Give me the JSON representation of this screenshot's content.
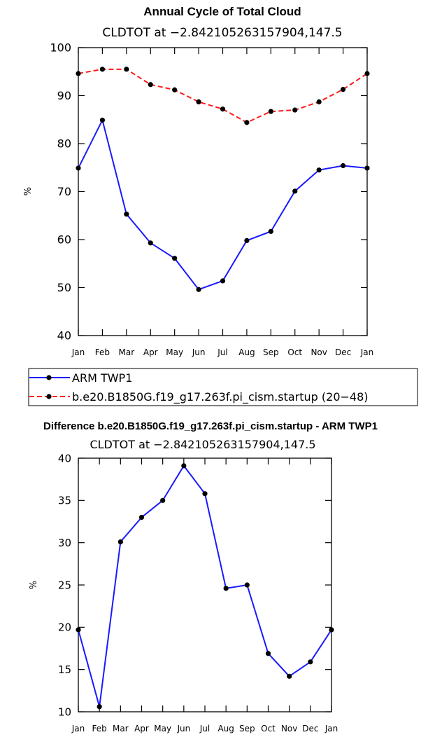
{
  "chart_data": [
    {
      "type": "line",
      "title": "Annual Cycle of Total Cloud",
      "subtitle": "CLDTOT at −2.842105263157904,147.5",
      "xlabel": "",
      "ylabel": "%",
      "categories": [
        "Jan",
        "Feb",
        "Mar",
        "Apr",
        "May",
        "Jun",
        "Jul",
        "Aug",
        "Sep",
        "Oct",
        "Nov",
        "Dec",
        "Jan"
      ],
      "ylim": [
        40,
        100
      ],
      "yticks": [
        40,
        50,
        60,
        70,
        80,
        90,
        100
      ],
      "series": [
        {
          "name": "ARM TWP1",
          "color": "#1a1aff",
          "dash": "solid",
          "values": [
            74.9,
            84.9,
            65.3,
            59.3,
            56.1,
            49.6,
            51.4,
            59.8,
            61.7,
            70.1,
            74.5,
            75.4,
            74.9
          ]
        },
        {
          "name": "b.e20.B1850G.f19_g17.263f.pi_cism.startup (20−48)",
          "color": "#ff1a1a",
          "dash": "dashed",
          "values": [
            94.6,
            95.5,
            95.5,
            92.3,
            91.2,
            88.7,
            87.2,
            84.4,
            86.7,
            87.0,
            88.7,
            91.3,
            94.6
          ]
        }
      ],
      "legend": "bottom"
    },
    {
      "type": "line",
      "title": "Difference b.e20.B1850G.f19_g17.263f.pi_cism.startup - ARM TWP1",
      "subtitle": "CLDTOT at −2.842105263157904,147.5",
      "xlabel": "",
      "ylabel": "%",
      "categories": [
        "Jan",
        "Feb",
        "Mar",
        "Apr",
        "May",
        "Jun",
        "Jul",
        "Aug",
        "Sep",
        "Oct",
        "Nov",
        "Dec",
        "Jan"
      ],
      "ylim": [
        10,
        40
      ],
      "yticks": [
        10,
        15,
        20,
        25,
        30,
        35,
        40
      ],
      "series": [
        {
          "name": "Difference",
          "color": "#1a1aff",
          "dash": "solid",
          "values": [
            19.7,
            10.6,
            30.1,
            33.0,
            35.0,
            39.1,
            35.8,
            24.6,
            25.0,
            16.9,
            14.2,
            15.9,
            19.7
          ]
        }
      ]
    }
  ]
}
